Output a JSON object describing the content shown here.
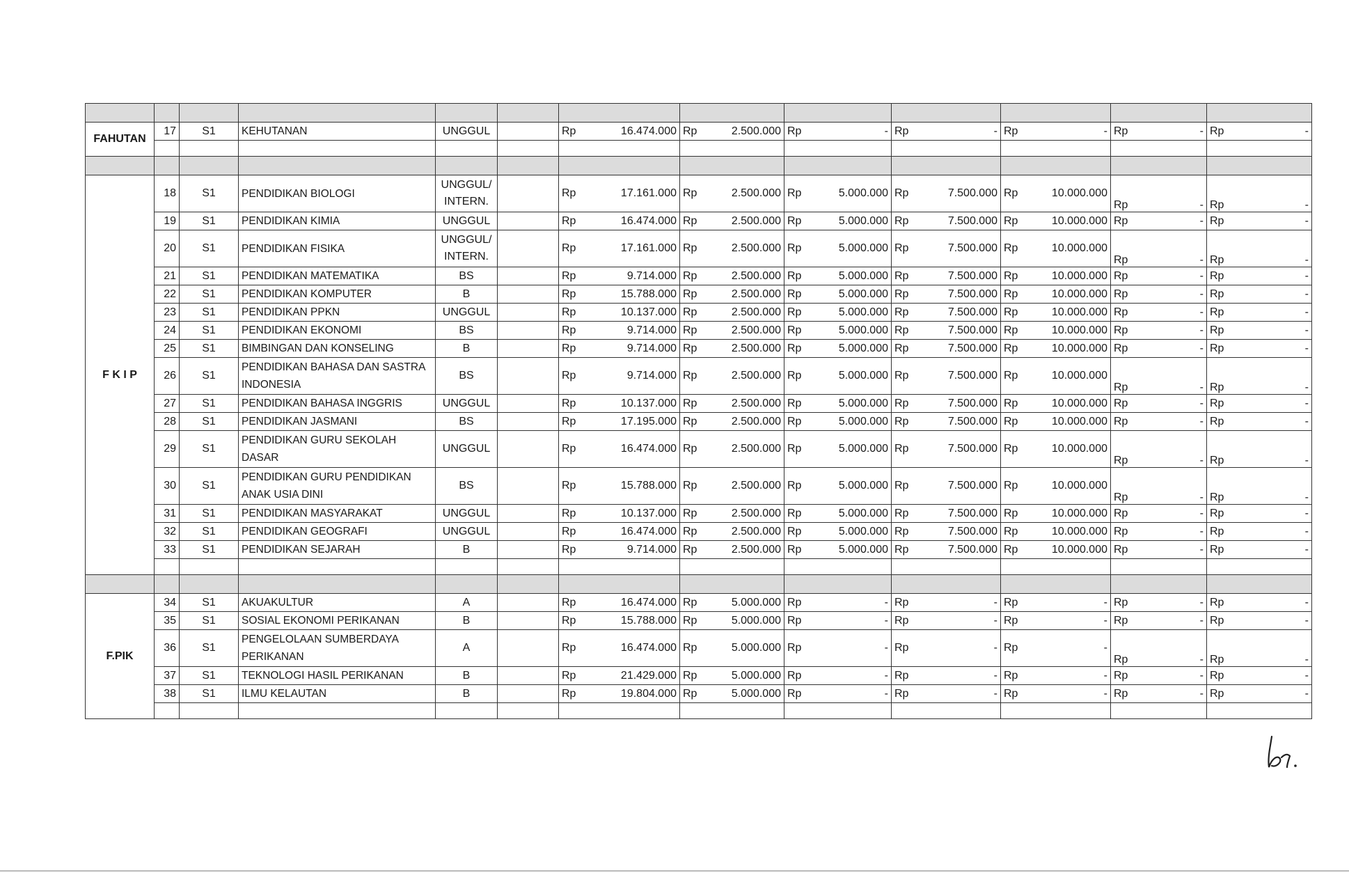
{
  "faculties": [
    {
      "name": "FAHUTAN",
      "rows": [
        {
          "no": "17",
          "level": "S1",
          "program": "KEHUTANAN",
          "accreditation": "UNGGUL",
          "fees": [
            "16.474.000",
            "2.500.000",
            "-",
            "-",
            "-",
            "-",
            "-"
          ]
        }
      ]
    },
    {
      "name": "F K I P",
      "rows": [
        {
          "no": "18",
          "level": "S1",
          "program": "PENDIDIKAN BIOLOGI",
          "accreditation": "UNGGUL/ INTERN.",
          "fees": [
            "17.161.000",
            "2.500.000",
            "5.000.000",
            "7.500.000",
            "10.000.000",
            "-",
            "-"
          ]
        },
        {
          "no": "19",
          "level": "S1",
          "program": "PENDIDIKAN KIMIA",
          "accreditation": "UNGGUL",
          "fees": [
            "16.474.000",
            "2.500.000",
            "5.000.000",
            "7.500.000",
            "10.000.000",
            "-",
            "-"
          ]
        },
        {
          "no": "20",
          "level": "S1",
          "program": "PENDIDIKAN FISIKA",
          "accreditation": "UNGGUL/ INTERN.",
          "fees": [
            "17.161.000",
            "2.500.000",
            "5.000.000",
            "7.500.000",
            "10.000.000",
            "-",
            "-"
          ]
        },
        {
          "no": "21",
          "level": "S1",
          "program": "PENDIDIKAN MATEMATIKA",
          "accreditation": "BS",
          "fees": [
            "9.714.000",
            "2.500.000",
            "5.000.000",
            "7.500.000",
            "10.000.000",
            "-",
            "-"
          ]
        },
        {
          "no": "22",
          "level": "S1",
          "program": "PENDIDIKAN KOMPUTER",
          "accreditation": "B",
          "fees": [
            "15.788.000",
            "2.500.000",
            "5.000.000",
            "7.500.000",
            "10.000.000",
            "-",
            "-"
          ]
        },
        {
          "no": "23",
          "level": "S1",
          "program": "PENDIDIKAN PPKN",
          "accreditation": "UNGGUL",
          "fees": [
            "10.137.000",
            "2.500.000",
            "5.000.000",
            "7.500.000",
            "10.000.000",
            "-",
            "-"
          ]
        },
        {
          "no": "24",
          "level": "S1",
          "program": "PENDIDIKAN  EKONOMI",
          "accreditation": "BS",
          "fees": [
            "9.714.000",
            "2.500.000",
            "5.000.000",
            "7.500.000",
            "10.000.000",
            "-",
            "-"
          ]
        },
        {
          "no": "25",
          "level": "S1",
          "program": "BIMBINGAN DAN KONSELING",
          "accreditation": "B",
          "fees": [
            "9.714.000",
            "2.500.000",
            "5.000.000",
            "7.500.000",
            "10.000.000",
            "-",
            "-"
          ]
        },
        {
          "no": "26",
          "level": "S1",
          "program": "PENDIDIKAN BAHASA DAN SASTRA INDONESIA",
          "accreditation": "BS",
          "fees": [
            "9.714.000",
            "2.500.000",
            "5.000.000",
            "7.500.000",
            "10.000.000",
            "-",
            "-"
          ]
        },
        {
          "no": "27",
          "level": "S1",
          "program": "PENDIDIKAN BAHASA  INGGRIS",
          "accreditation": "UNGGUL",
          "fees": [
            "10.137.000",
            "2.500.000",
            "5.000.000",
            "7.500.000",
            "10.000.000",
            "-",
            "-"
          ]
        },
        {
          "no": "28",
          "level": "S1",
          "program": "PENDIDIKAN JASMANI",
          "accreditation": "BS",
          "fees": [
            "17.195.000",
            "2.500.000",
            "5.000.000",
            "7.500.000",
            "10.000.000",
            "-",
            "-"
          ]
        },
        {
          "no": "29",
          "level": "S1",
          "program": "PENDIDIKAN GURU SEKOLAH DASAR",
          "accreditation": "UNGGUL",
          "fees": [
            "16.474.000",
            "2.500.000",
            "5.000.000",
            "7.500.000",
            "10.000.000",
            "-",
            "-"
          ]
        },
        {
          "no": "30",
          "level": "S1",
          "program": "PENDIDIKAN  GURU PENDIDIKAN ANAK USIA DINI",
          "accreditation": "BS",
          "fees": [
            "15.788.000",
            "2.500.000",
            "5.000.000",
            "7.500.000",
            "10.000.000",
            "-",
            "-"
          ]
        },
        {
          "no": "31",
          "level": "S1",
          "program": "PENDIDIKAN MASYARAKAT",
          "accreditation": "UNGGUL",
          "fees": [
            "10.137.000",
            "2.500.000",
            "5.000.000",
            "7.500.000",
            "10.000.000",
            "-",
            "-"
          ]
        },
        {
          "no": "32",
          "level": "S1",
          "program": "PENDIDIKAN GEOGRAFI",
          "accreditation": "UNGGUL",
          "fees": [
            "16.474.000",
            "2.500.000",
            "5.000.000",
            "7.500.000",
            "10.000.000",
            "-",
            "-"
          ]
        },
        {
          "no": "33",
          "level": "S1",
          "program": "PENDIDIKAN SEJARAH",
          "accreditation": "B",
          "fees": [
            "9.714.000",
            "2.500.000",
            "5.000.000",
            "7.500.000",
            "10.000.000",
            "-",
            "-"
          ]
        }
      ]
    },
    {
      "name": "F.PIK",
      "rows": [
        {
          "no": "34",
          "level": "S1",
          "program": "AKUAKULTUR",
          "accreditation": "A",
          "fees": [
            "16.474.000",
            "5.000.000",
            "-",
            "-",
            "-",
            "-",
            "-"
          ]
        },
        {
          "no": "35",
          "level": "S1",
          "program": "SOSIAL EKONOMI  PERIKANAN",
          "accreditation": "B",
          "fees": [
            "15.788.000",
            "5.000.000",
            "-",
            "-",
            "-",
            "-",
            "-"
          ]
        },
        {
          "no": "36",
          "level": "S1",
          "program": "PENGELOLAAN SUMBERDAYA PERIKANAN",
          "accreditation": "A",
          "fees": [
            "16.474.000",
            "5.000.000",
            "-",
            "-",
            "-",
            "-",
            "-"
          ]
        },
        {
          "no": "37",
          "level": "S1",
          "program": "TEKNOLOGI HASIL PERIKANAN",
          "accreditation": "B",
          "fees": [
            "21.429.000",
            "5.000.000",
            "-",
            "-",
            "-",
            "-",
            "-"
          ]
        },
        {
          "no": "38",
          "level": "S1",
          "program": "ILMU KELAUTAN",
          "accreditation": "B",
          "fees": [
            "19.804.000",
            "5.000.000",
            "-",
            "-",
            "-",
            "-",
            "-"
          ]
        }
      ]
    }
  ],
  "currency": "Rp",
  "colors": {
    "section_band": "#dcdcdc",
    "border": "#333333"
  }
}
